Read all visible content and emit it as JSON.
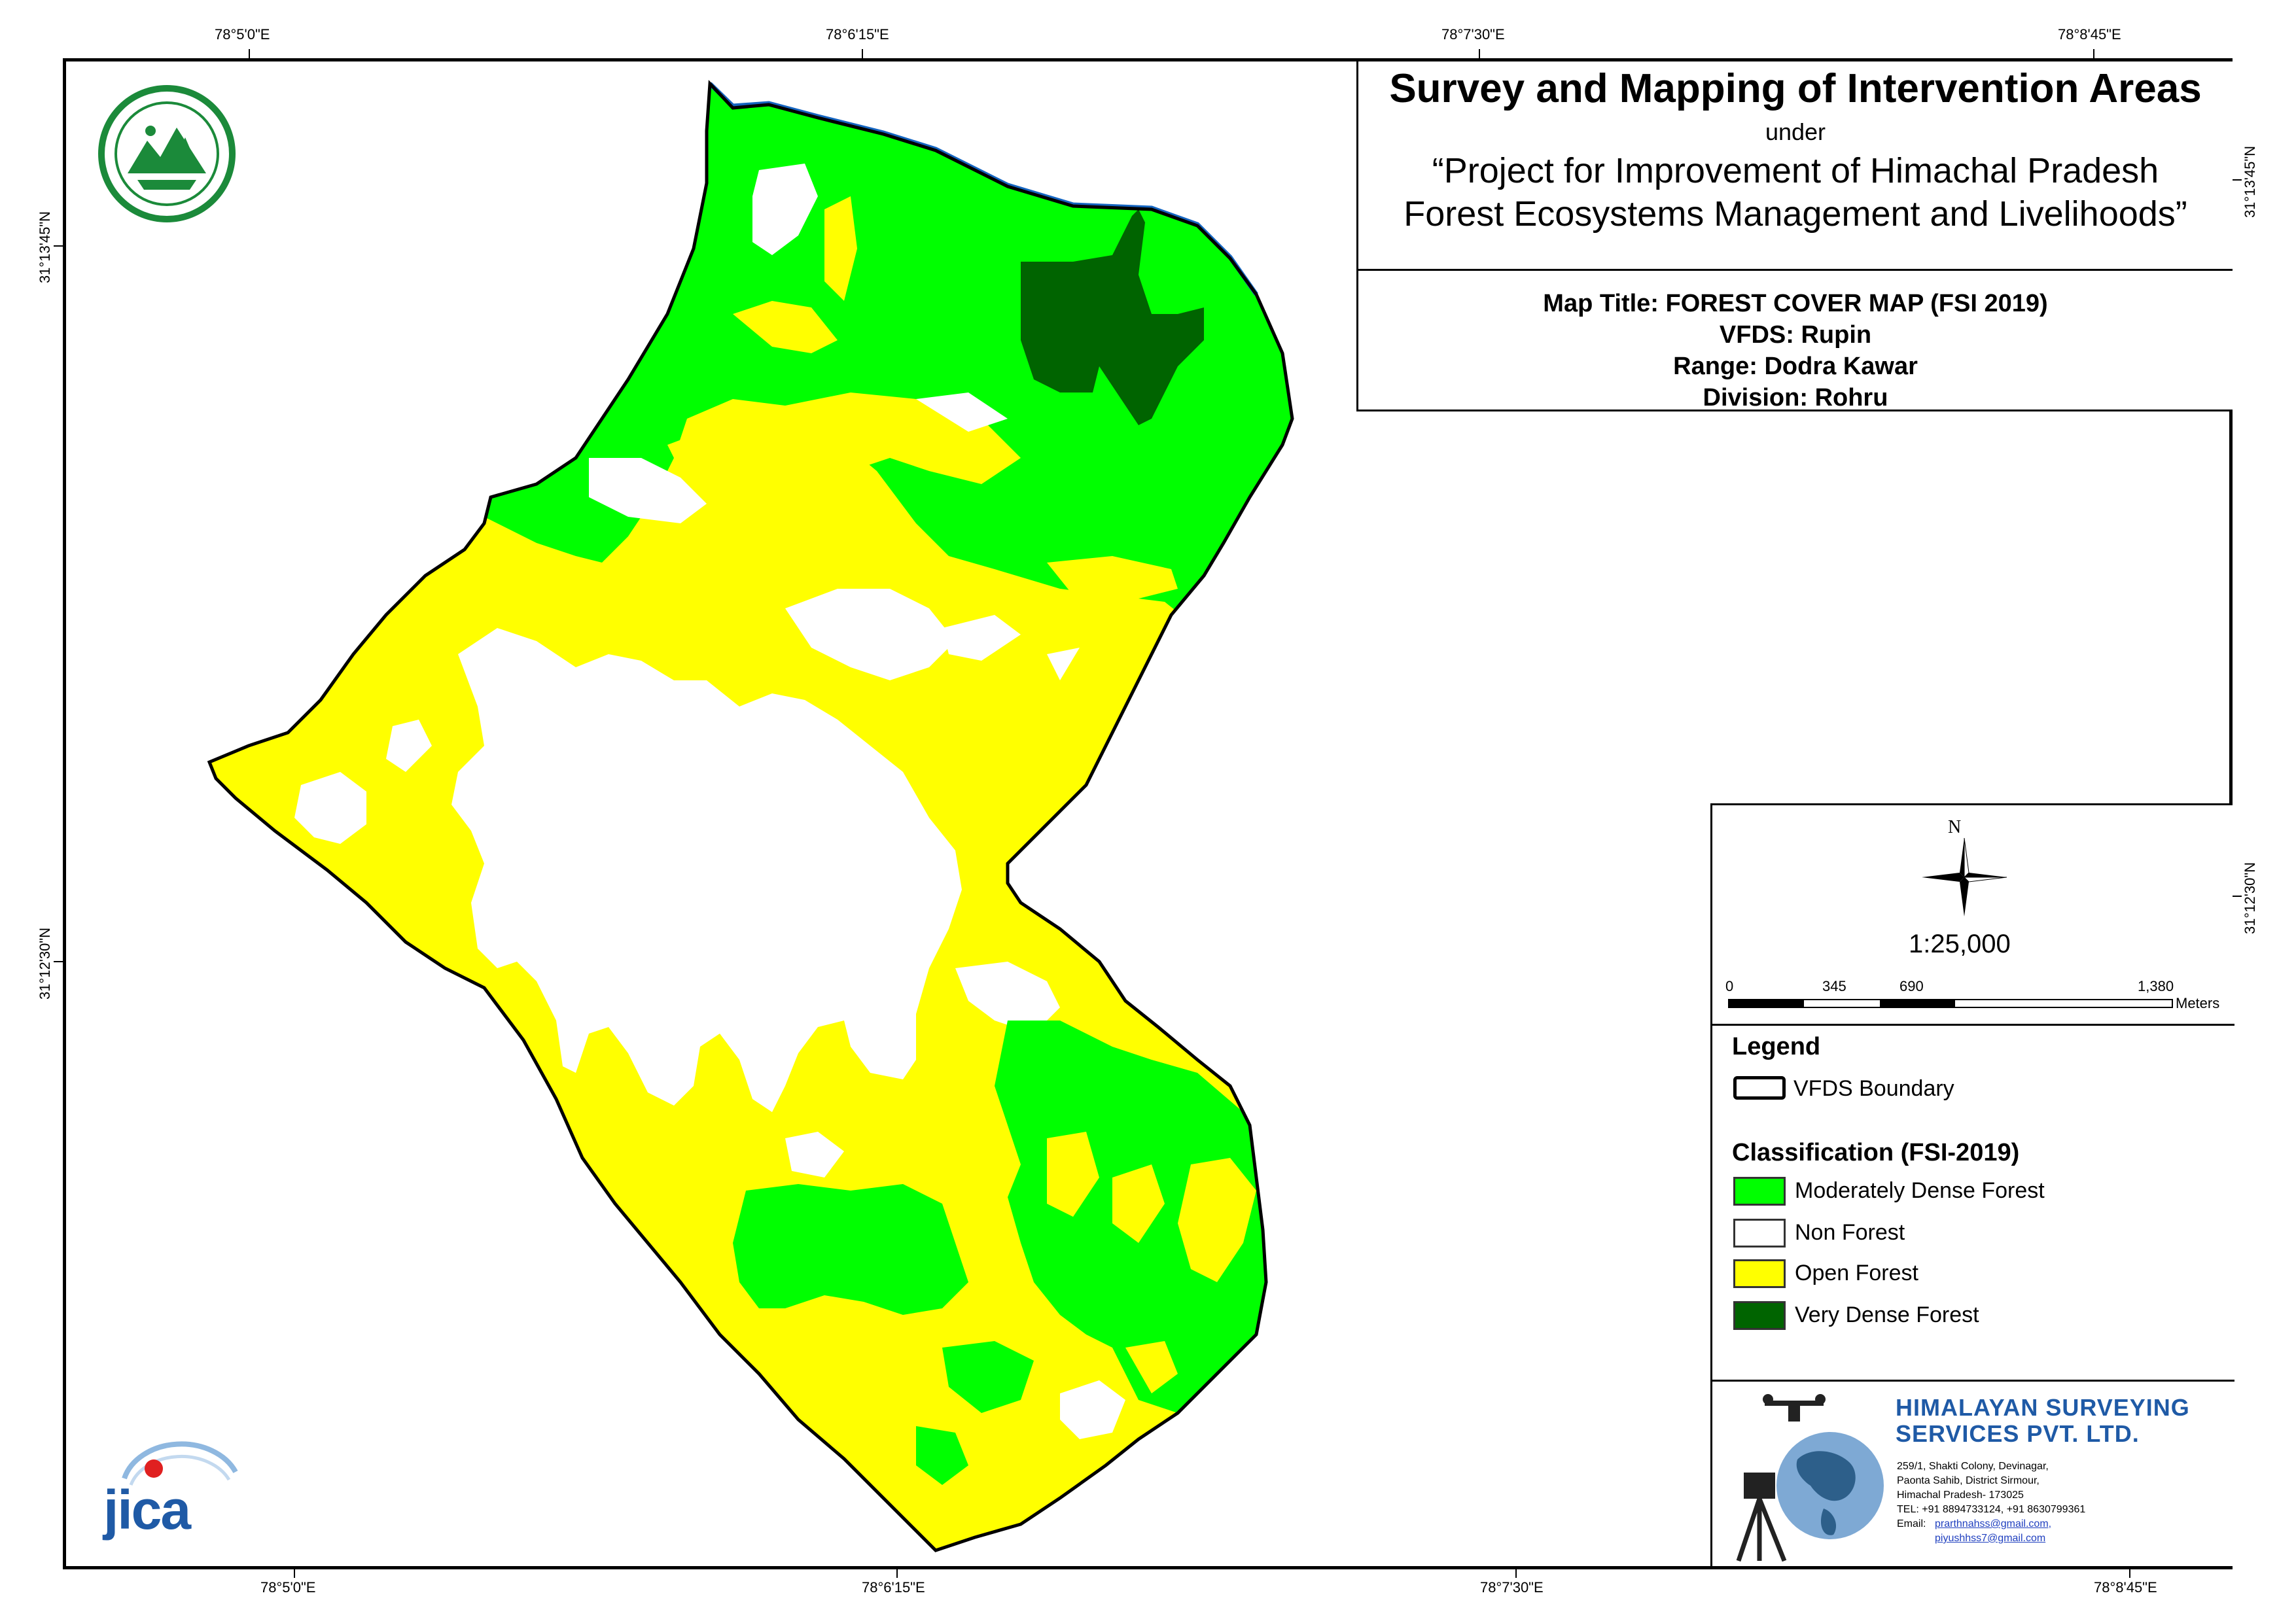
{
  "graticule": {
    "top": [
      "78°5'0\"E",
      "78°6'15\"E",
      "78°7'30\"E",
      "78°8'45\"E"
    ],
    "bottom": [
      "78°5'0\"E",
      "78°6'15\"E",
      "78°7'30\"E",
      "78°8'45\"E"
    ],
    "left": [
      "31°13'45\"N",
      "31°12'30\"N"
    ],
    "right": [
      "31°13'45\"N",
      "31°12'30\"N"
    ]
  },
  "header": {
    "title": "Survey and Mapping of Intervention Areas",
    "under": "under",
    "project_line1": "“Project for Improvement of Himachal Pradesh",
    "project_line2": "Forest Ecosystems Management and Livelihoods”"
  },
  "map_info": {
    "title": "Map Title: FOREST COVER MAP (FSI 2019)",
    "vfds": "VFDS: Rupin",
    "range": "Range: Dodra Kawar",
    "division": "Division: Rohru"
  },
  "north_arrow": {
    "label": "N",
    "icon": "north-arrow-icon"
  },
  "scale": {
    "ratio": "1:25,000",
    "ticks": [
      "0",
      "345",
      "690",
      "1,380"
    ],
    "unit": "Meters"
  },
  "legend": {
    "heading": "Legend",
    "boundary_label": "VFDS Boundary",
    "class_heading": "Classification (FSI-2019)",
    "classes": [
      {
        "label": "Moderately Dense Forest",
        "color": "#00ff00"
      },
      {
        "label": "Non Forest",
        "color": "#ffffff"
      },
      {
        "label": "Open Forest",
        "color": "#ffff00"
      },
      {
        "label": "Very Dense Forest",
        "color": "#006400"
      }
    ]
  },
  "company": {
    "name_line1": "HIMALAYAN SURVEYING",
    "name_line2": "SERVICES PVT. LTD.",
    "address1": "259/1, Shakti Colony, Devinagar,",
    "address2": "Paonta Sahib, District Sirmour,",
    "address3": "Himachal Pradesh- 173025",
    "tel": "TEL: +91 8894733124, +91 8630799361",
    "email_label": "Email:",
    "email1": "prarthnahss@gmail.com,",
    "email2": "piyushhss7@gmail.com"
  },
  "logos": {
    "hp_forest": "hp-forest-logo",
    "jica": "jica-logo",
    "jica_text": "jica"
  },
  "colors": {
    "moderately_dense": "#00ff00",
    "very_dense": "#006400",
    "open_forest": "#ffff00",
    "non_forest": "#ffffff",
    "river": "#1565c0",
    "company_blue": "#1f5aa6"
  }
}
